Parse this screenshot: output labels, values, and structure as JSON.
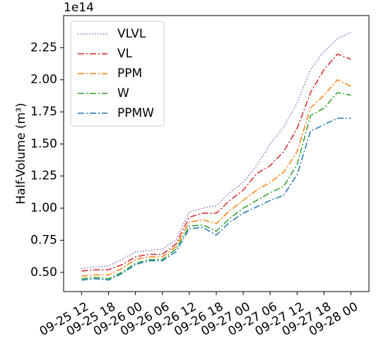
{
  "chart_data": {
    "type": "line",
    "y_label": "Half-Volume (m³)",
    "y_offset_label": "1e14",
    "x": [
      "09-25 12",
      "09-25 15",
      "09-25 18",
      "09-25 21",
      "09-26 00",
      "09-26 03",
      "09-26 06",
      "09-26 09",
      "09-26 12",
      "09-26 15",
      "09-26 18",
      "09-26 21",
      "09-27 00",
      "09-27 03",
      "09-27 06",
      "09-27 09",
      "09-27 12",
      "09-27 15",
      "09-27 18",
      "09-27 21",
      "09-28 00"
    ],
    "xlim": [
      "09-25 08",
      "09-28 04"
    ],
    "xticks": [
      "09-25 12",
      "09-25 18",
      "09-26 00",
      "09-26 06",
      "09-26 12",
      "09-26 18",
      "09-27 00",
      "09-27 06",
      "09-27 12",
      "09-27 18",
      "09-28 00"
    ],
    "ylim": [
      0.35,
      2.5
    ],
    "yticks": [
      {
        "value": 0.5,
        "label": "0.50"
      },
      {
        "value": 0.75,
        "label": "0.75"
      },
      {
        "value": 1,
        "label": "1.00"
      },
      {
        "value": 1.25,
        "label": "1.25"
      },
      {
        "value": 1.5,
        "label": "1.50"
      },
      {
        "value": 1.75,
        "label": "1.75"
      },
      {
        "value": 2,
        "label": "2.00"
      },
      {
        "value": 2.25,
        "label": "2.25"
      }
    ],
    "legend": "upper left",
    "series": [
      {
        "name": "VLVL",
        "color": "#9467bd",
        "linestyle": "dotted",
        "values": [
          0.53,
          0.54,
          0.55,
          0.6,
          0.66,
          0.67,
          0.68,
          0.75,
          0.97,
          1.0,
          1.02,
          1.12,
          1.2,
          1.33,
          1.5,
          1.63,
          1.82,
          2.08,
          2.22,
          2.32,
          2.37
        ]
      },
      {
        "name": "VL",
        "color": "#d62728",
        "linestyle": "dashdot",
        "values": [
          0.51,
          0.52,
          0.52,
          0.56,
          0.62,
          0.64,
          0.64,
          0.72,
          0.93,
          0.96,
          0.96,
          1.06,
          1.14,
          1.27,
          1.33,
          1.44,
          1.62,
          1.9,
          2.08,
          2.2,
          2.16
        ]
      },
      {
        "name": "PPM",
        "color": "#ff7f0e",
        "linestyle": "dashdot",
        "values": [
          0.47,
          0.48,
          0.48,
          0.53,
          0.6,
          0.62,
          0.62,
          0.7,
          0.89,
          0.91,
          0.88,
          0.98,
          1.06,
          1.14,
          1.2,
          1.28,
          1.44,
          1.78,
          1.88,
          2.0,
          1.95
        ]
      },
      {
        "name": "W",
        "color": "#2ca02c",
        "linestyle": "dashdot",
        "values": [
          0.45,
          0.46,
          0.45,
          0.5,
          0.57,
          0.6,
          0.6,
          0.68,
          0.86,
          0.87,
          0.82,
          0.92,
          1.0,
          1.06,
          1.12,
          1.17,
          1.34,
          1.72,
          1.78,
          1.9,
          1.88
        ]
      },
      {
        "name": "PPMW",
        "color": "#1f77b4",
        "linestyle": "dashdot",
        "values": [
          0.44,
          0.45,
          0.44,
          0.49,
          0.56,
          0.59,
          0.59,
          0.66,
          0.84,
          0.85,
          0.79,
          0.89,
          0.96,
          1.01,
          1.06,
          1.1,
          1.26,
          1.6,
          1.65,
          1.7,
          1.7
        ]
      }
    ]
  }
}
